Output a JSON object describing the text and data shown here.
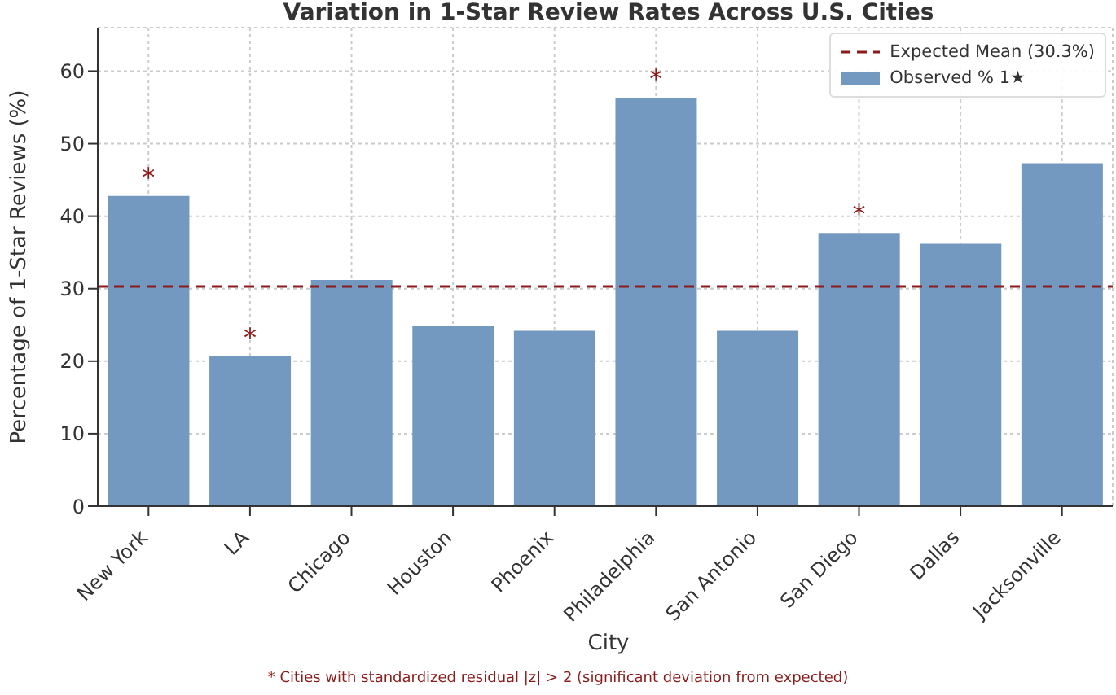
{
  "chart_data": {
    "type": "bar",
    "title": "Variation in 1-Star Review Rates Across U.S. Cities",
    "xlabel": "City",
    "ylabel": "Percentage of 1-Star Reviews (%)",
    "categories": [
      "New York",
      "LA",
      "Chicago",
      "Houston",
      "Phoenix",
      "Philadelphia",
      "San Antonio",
      "San Diego",
      "Dallas",
      "Jacksonville"
    ],
    "series": [
      {
        "name": "Observed % 1★",
        "color": "#7399c1",
        "values": [
          42.8,
          20.7,
          31.2,
          24.9,
          24.2,
          56.3,
          24.2,
          37.7,
          36.2,
          47.3
        ]
      }
    ],
    "ylim": [
      0,
      66
    ],
    "yticks": [
      0,
      10,
      20,
      30,
      40,
      50,
      60
    ],
    "grid": true,
    "legend": "top right",
    "ref_lines": [
      {
        "axis": "y",
        "value": 30.3,
        "label": "Expected Mean (30.3%)",
        "color": "#8b1a1a",
        "line_style": "dashed"
      }
    ],
    "annotations": [
      {
        "text": "*",
        "x": "New York",
        "y": 42.8
      },
      {
        "text": "*",
        "x": "LA",
        "y": 20.7
      },
      {
        "text": "*",
        "x": "Philadelphia",
        "y": 56.3
      },
      {
        "text": "*",
        "x": "San Diego",
        "y": 37.7
      },
      "* Cities with standardized residual |z| > 2 (significant deviation from expected)"
    ]
  }
}
